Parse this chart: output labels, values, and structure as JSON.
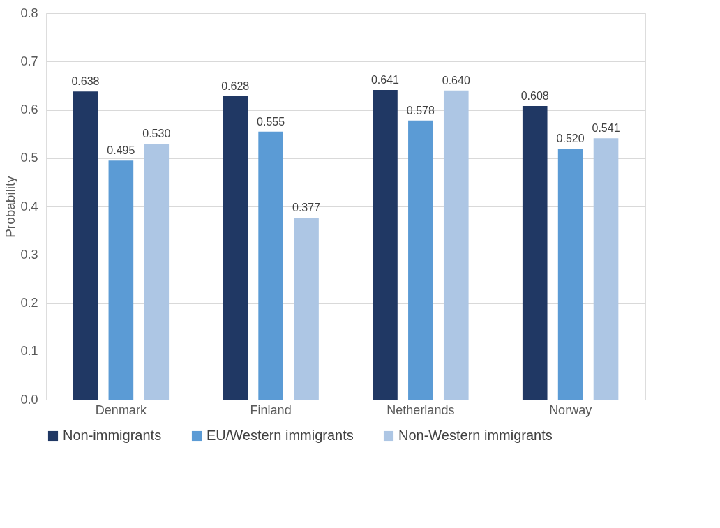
{
  "chart_data": {
    "type": "bar",
    "ylabel": "Probability",
    "categories": [
      "Denmark",
      "Finland",
      "Netherlands",
      "Norway"
    ],
    "series": [
      {
        "name": "Non-immigrants",
        "color": "#203864",
        "values": [
          0.638,
          0.628,
          0.641,
          0.608
        ],
        "value_labels": [
          "0.638",
          "0.628",
          "0.641",
          "0.608"
        ]
      },
      {
        "name": "EU/Western immigrants",
        "color": "#5b9bd5",
        "values": [
          0.495,
          0.555,
          0.578,
          0.52
        ],
        "value_labels": [
          "0.495",
          "0.555",
          "0.578",
          "0.520"
        ]
      },
      {
        "name": "Non-Western immigrants",
        "color": "#adc6e4",
        "values": [
          0.53,
          0.377,
          0.64,
          0.541
        ],
        "value_labels": [
          "0.530",
          "0.377",
          "0.640",
          "0.541"
        ]
      }
    ],
    "ylim": [
      0,
      0.8
    ],
    "yticks": [
      {
        "value": 0,
        "label": "0.0"
      },
      0.1,
      0.2,
      0.3,
      0.4,
      0.5,
      0.6,
      0.7,
      0.8
    ],
    "grid": "y",
    "legend": "bottom"
  }
}
